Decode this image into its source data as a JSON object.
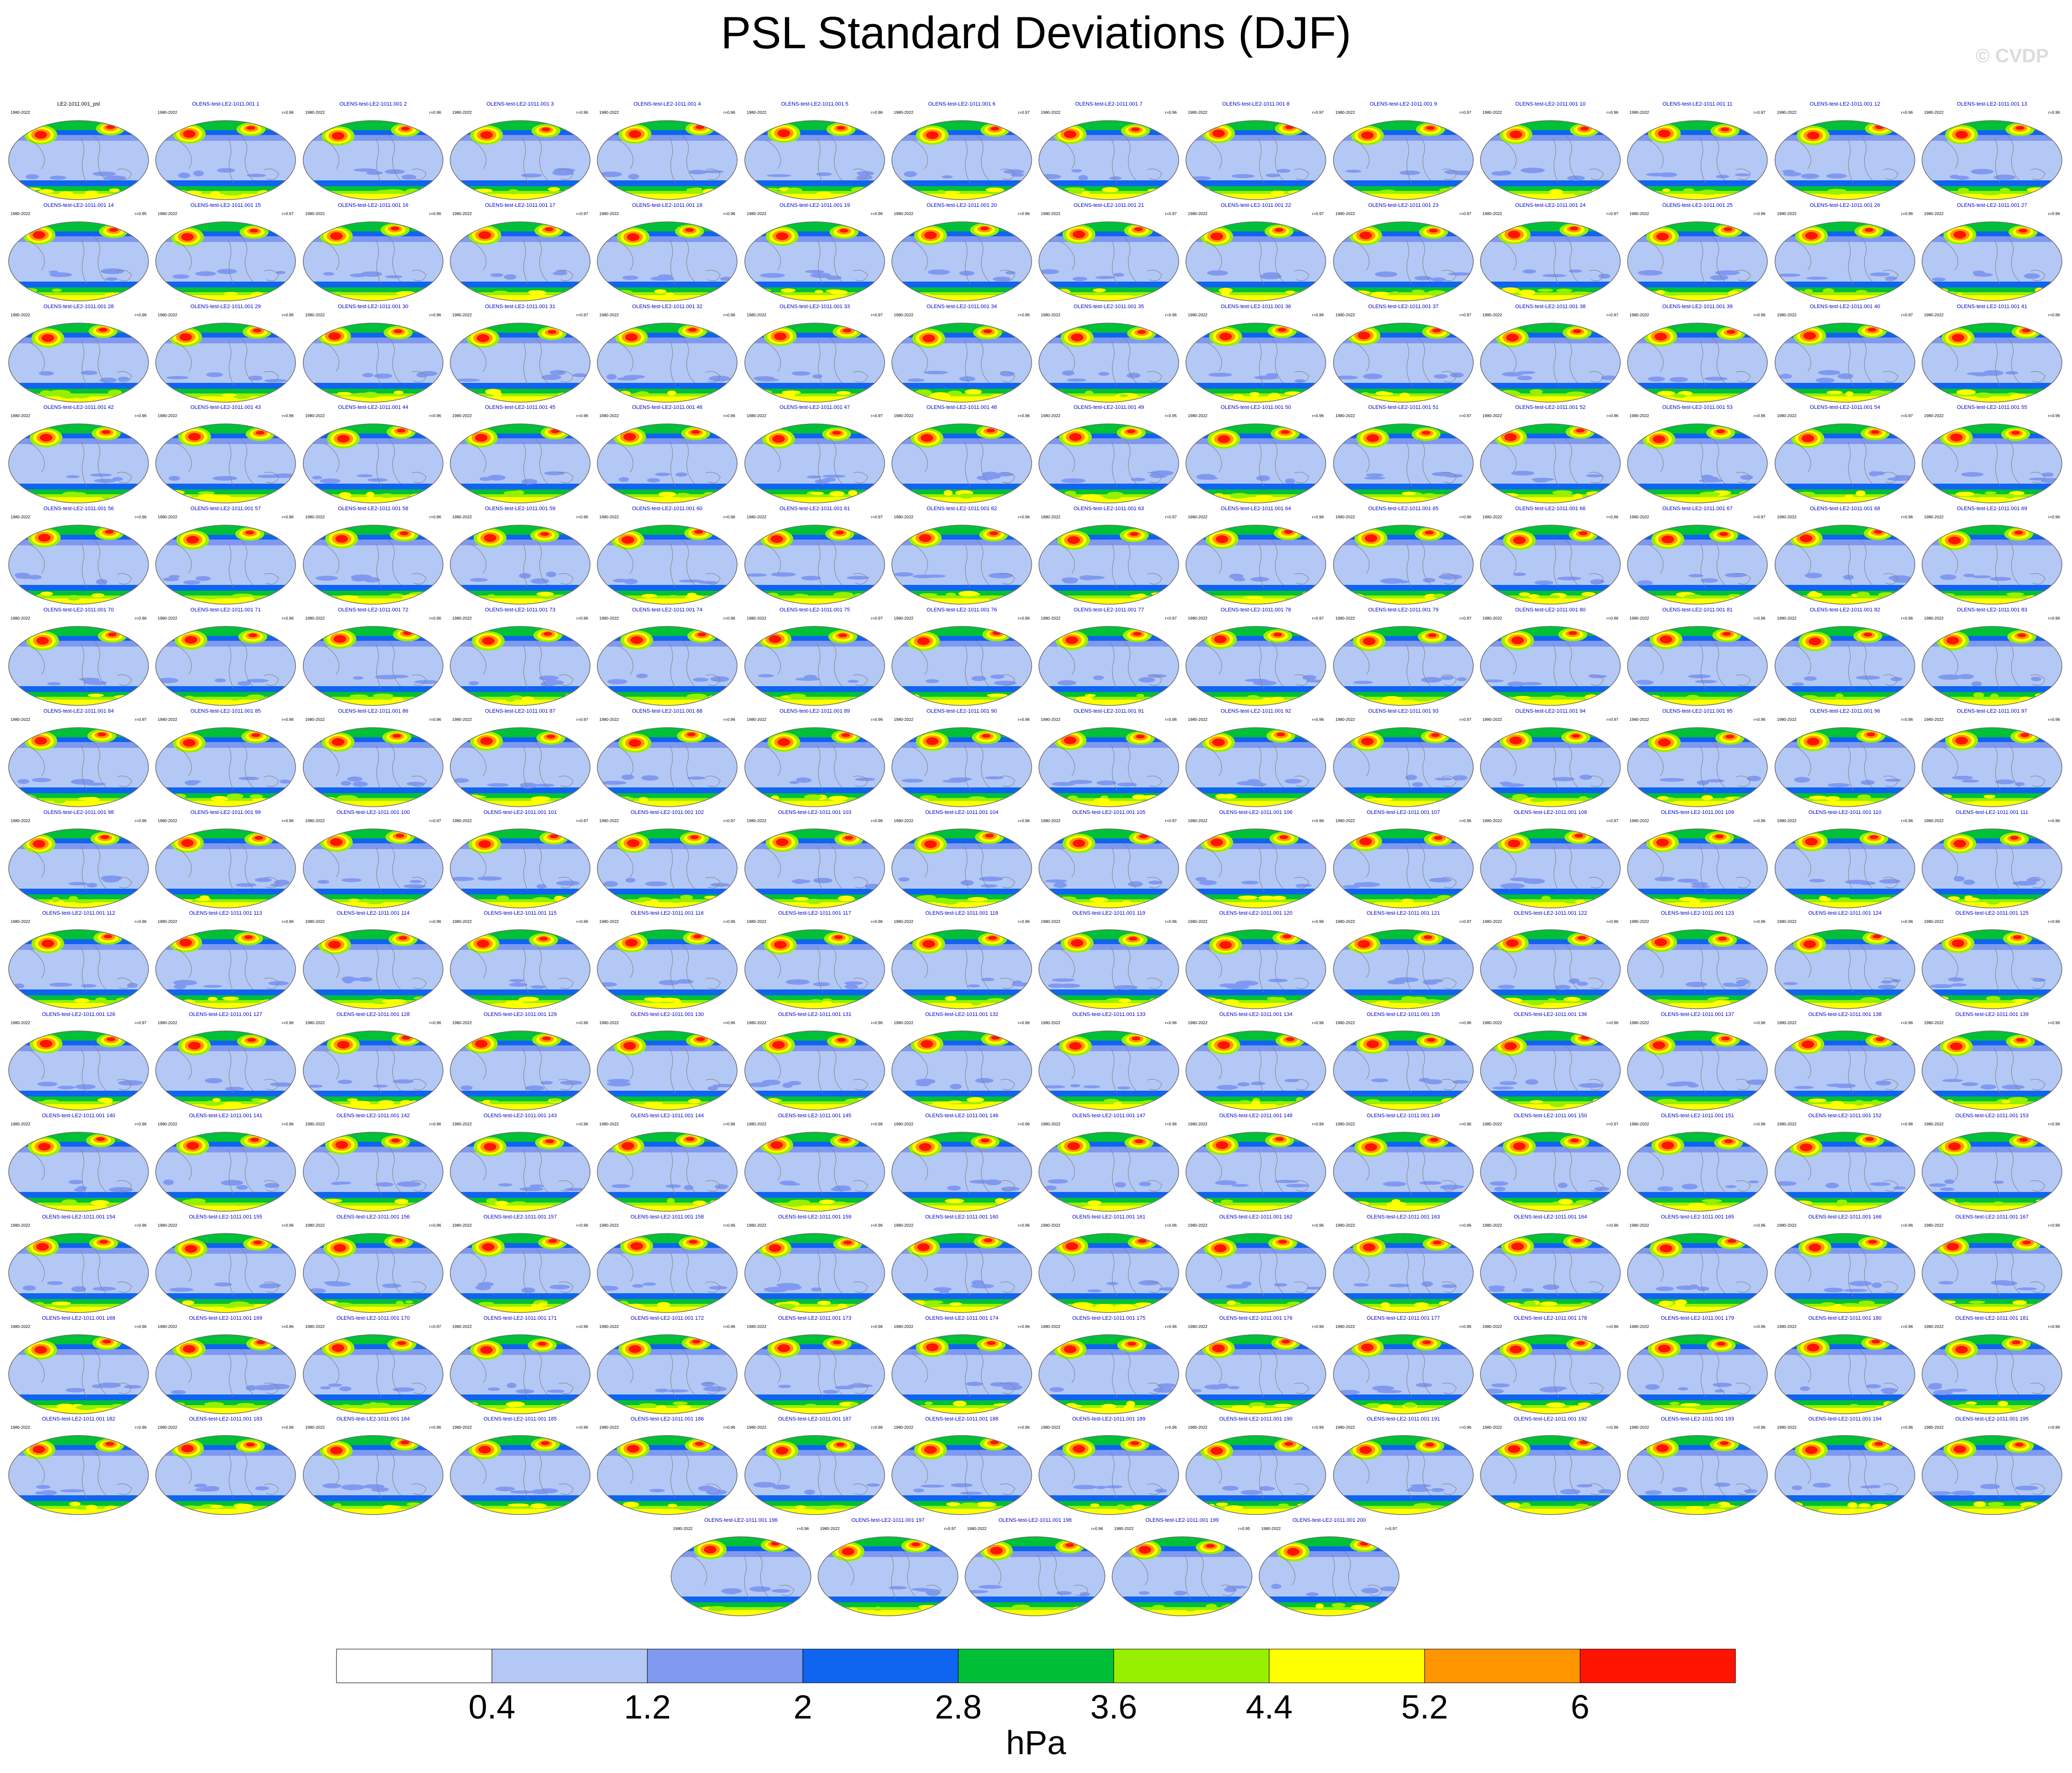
{
  "title": "PSL Standard Deviations (DJF)",
  "watermark": "© CVDP",
  "chart_data": {
    "type": "heatmap",
    "variable": "psl",
    "season": "DJF",
    "period": "1980-2022",
    "reference_panel": {
      "label": "LE2-1011.001_psl",
      "period": "1980-2022"
    },
    "panels": [
      {
        "label": "OLENS-test-LE2-1011.001 1",
        "r": "r=0.96"
      },
      {
        "label": "OLENS-test-LE2-1011.001 2",
        "r": "r=0.96"
      },
      {
        "label": "OLENS-test-LE2-1011.001 3",
        "r": "r=0.96"
      },
      {
        "label": "OLENS-test-LE2-1011.001 4",
        "r": "r=0.96"
      },
      {
        "label": "OLENS-test-LE2-1011.001 5",
        "r": "r=0.96"
      },
      {
        "label": "OLENS-test-LE2-1011.001 6",
        "r": "r=0.97"
      },
      {
        "label": "OLENS-test-LE2-1011.001 7",
        "r": "r=0.96"
      },
      {
        "label": "OLENS-test-LE2-1011.001 8",
        "r": "r=0.97"
      },
      {
        "label": "OLENS-test-LE2-1011.001 9",
        "r": "r=0.97"
      },
      {
        "label": "OLENS-test-LE2-1011.001 10",
        "r": "r=0.96"
      },
      {
        "label": "OLENS-test-LE2-1011.001 11",
        "r": "r=0.97"
      },
      {
        "label": "OLENS-test-LE2-1011.001 12",
        "r": "r=0.96"
      },
      {
        "label": "OLENS-test-LE2-1011.001 13",
        "r": "r=0.96"
      },
      {
        "label": "OLENS-test-LE2-1011.001 14",
        "r": "r=0.95"
      },
      {
        "label": "OLENS-test-LE2-1011.001 15",
        "r": "r=0.97"
      },
      {
        "label": "OLENS-test-LE2-1011.001 16",
        "r": "r=0.96"
      },
      {
        "label": "OLENS-test-LE2-1011.001 17",
        "r": "r=0.97"
      },
      {
        "label": "OLENS-test-LE2-1011.001 18",
        "r": "r=0.96"
      },
      {
        "label": "OLENS-test-LE2-1011.001 19",
        "r": "r=0.96"
      },
      {
        "label": "OLENS-test-LE2-1011.001 20",
        "r": "r=0.96"
      },
      {
        "label": "OLENS-test-LE2-1011.001 21",
        "r": "r=0.97"
      },
      {
        "label": "OLENS-test-LE2-1011.001 22",
        "r": "r=0.97"
      },
      {
        "label": "OLENS-test-LE2-1011.001 23",
        "r": "r=0.97"
      },
      {
        "label": "OLENS-test-LE2-1011.001 24",
        "r": "r=0.97"
      },
      {
        "label": "OLENS-test-LE2-1011.001 25",
        "r": "r=0.96"
      },
      {
        "label": "OLENS-test-LE2-1011.001 26",
        "r": "r=0.96"
      },
      {
        "label": "OLENS-test-LE2-1011.001 27",
        "r": "r=0.96"
      },
      {
        "label": "OLENS-test-LE2-1011.001 28",
        "r": "r=0.96"
      },
      {
        "label": "OLENS-test-LE2-1011.001 29",
        "r": "r=0.96"
      },
      {
        "label": "OLENS-test-LE2-1011.001 30",
        "r": "r=0.96"
      },
      {
        "label": "OLENS-test-LE2-1011.001 31",
        "r": "r=0.97"
      },
      {
        "label": "OLENS-test-LE2-1011.001 32",
        "r": "r=0.96"
      },
      {
        "label": "OLENS-test-LE2-1011.001 33",
        "r": "r=0.97"
      },
      {
        "label": "OLENS-test-LE2-1011.001 34",
        "r": "r=0.96"
      },
      {
        "label": "OLENS-test-LE2-1011.001 35",
        "r": "r=0.96"
      },
      {
        "label": "OLENS-test-LE2-1011.001 36",
        "r": "r=0.96"
      },
      {
        "label": "OLENS-test-LE2-1011.001 37",
        "r": "r=0.97"
      },
      {
        "label": "OLENS-test-LE2-1011.001 38",
        "r": "r=0.97"
      },
      {
        "label": "OLENS-test-LE2-1011.001 39",
        "r": "r=0.96"
      },
      {
        "label": "OLENS-test-LE2-1011.001 40",
        "r": "r=0.97"
      },
      {
        "label": "OLENS-test-LE2-1011.001 41",
        "r": "r=0.96"
      },
      {
        "label": "OLENS-test-LE2-1011.001 42",
        "r": "r=0.96"
      },
      {
        "label": "OLENS-test-LE2-1011.001 43",
        "r": "r=0.96"
      },
      {
        "label": "OLENS-test-LE2-1011.001 44",
        "r": "r=0.96"
      },
      {
        "label": "OLENS-test-LE2-1011.001 45",
        "r": "r=0.96"
      },
      {
        "label": "OLENS-test-LE2-1011.001 46",
        "r": "r=0.96"
      },
      {
        "label": "OLENS-test-LE2-1011.001 47",
        "r": "r=0.97"
      },
      {
        "label": "OLENS-test-LE2-1011.001 48",
        "r": "r=0.96"
      },
      {
        "label": "OLENS-test-LE2-1011.001 49",
        "r": "r=0.95"
      },
      {
        "label": "OLENS-test-LE2-1011.001 50",
        "r": "r=0.96"
      },
      {
        "label": "OLENS-test-LE2-1011.001 51",
        "r": "r=0.97"
      },
      {
        "label": "OLENS-test-LE2-1011.001 52",
        "r": "r=0.96"
      },
      {
        "label": "OLENS-test-LE2-1011.001 53",
        "r": "r=0.96"
      },
      {
        "label": "OLENS-test-LE2-1011.001 54",
        "r": "r=0.97"
      },
      {
        "label": "OLENS-test-LE2-1011.001 55",
        "r": "r=0.96"
      },
      {
        "label": "OLENS-test-LE2-1011.001 56",
        "r": "r=0.96"
      },
      {
        "label": "OLENS-test-LE2-1011.001 57",
        "r": "r=0.96"
      },
      {
        "label": "OLENS-test-LE2-1011.001 58",
        "r": "r=0.96"
      },
      {
        "label": "OLENS-test-LE2-1011.001 59",
        "r": "r=0.96"
      },
      {
        "label": "OLENS-test-LE2-1011.001 60",
        "r": "r=0.96"
      },
      {
        "label": "OLENS-test-LE2-1011.001 61",
        "r": "r=0.97"
      },
      {
        "label": "OLENS-test-LE2-1011.001 62",
        "r": "r=0.96"
      },
      {
        "label": "OLENS-test-LE2-1011.001 63",
        "r": "r=0.97"
      },
      {
        "label": "OLENS-test-LE2-1011.001 64",
        "r": "r=0.96"
      },
      {
        "label": "OLENS-test-LE2-1011.001 65",
        "r": "r=0.96"
      },
      {
        "label": "OLENS-test-LE2-1011.001 66",
        "r": "r=0.96"
      },
      {
        "label": "OLENS-test-LE2-1011.001 67",
        "r": "r=0.97"
      },
      {
        "label": "OLENS-test-LE2-1011.001 68",
        "r": "r=0.96"
      },
      {
        "label": "OLENS-test-LE2-1011.001 69",
        "r": "r=0.96"
      },
      {
        "label": "OLENS-test-LE2-1011.001 70",
        "r": "r=0.96"
      },
      {
        "label": "OLENS-test-LE2-1011.001 71",
        "r": "r=0.96"
      },
      {
        "label": "OLENS-test-LE2-1011.001 72",
        "r": "r=0.96"
      },
      {
        "label": "OLENS-test-LE2-1011.001 73",
        "r": "r=0.96"
      },
      {
        "label": "OLENS-test-LE2-1011.001 74",
        "r": "r=0.96"
      },
      {
        "label": "OLENS-test-LE2-1011.001 75",
        "r": "r=0.97"
      },
      {
        "label": "OLENS-test-LE2-1011.001 76",
        "r": "r=0.96"
      },
      {
        "label": "OLENS-test-LE2-1011.001 77",
        "r": "r=0.97"
      },
      {
        "label": "OLENS-test-LE2-1011.001 78",
        "r": "r=0.97"
      },
      {
        "label": "OLENS-test-LE2-1011.001 79",
        "r": "r=0.97"
      },
      {
        "label": "OLENS-test-LE2-1011.001 80",
        "r": "r=0.96"
      },
      {
        "label": "OLENS-test-LE2-1011.001 81",
        "r": "r=0.96"
      },
      {
        "label": "OLENS-test-LE2-1011.001 82",
        "r": "r=0.96"
      },
      {
        "label": "OLENS-test-LE2-1011.001 83",
        "r": "r=0.96"
      },
      {
        "label": "OLENS-test-LE2-1011.001 84",
        "r": "r=0.97"
      },
      {
        "label": "OLENS-test-LE2-1011.001 85",
        "r": "r=0.96"
      },
      {
        "label": "OLENS-test-LE2-1011.001 86",
        "r": "r=0.96"
      },
      {
        "label": "OLENS-test-LE2-1011.001 87",
        "r": "r=0.97"
      },
      {
        "label": "OLENS-test-LE2-1011.001 88",
        "r": "r=0.96"
      },
      {
        "label": "OLENS-test-LE2-1011.001 89",
        "r": "r=0.96"
      },
      {
        "label": "OLENS-test-LE2-1011.001 90",
        "r": "r=0.96"
      },
      {
        "label": "OLENS-test-LE2-1011.001 91",
        "r": "r=0.96"
      },
      {
        "label": "OLENS-test-LE2-1011.001 92",
        "r": "r=0.96"
      },
      {
        "label": "OLENS-test-LE2-1011.001 93",
        "r": "r=0.97"
      },
      {
        "label": "OLENS-test-LE2-1011.001 94",
        "r": "r=0.97"
      },
      {
        "label": "OLENS-test-LE2-1011.001 95",
        "r": "r=0.96"
      },
      {
        "label": "OLENS-test-LE2-1011.001 96",
        "r": "r=0.96"
      },
      {
        "label": "OLENS-test-LE2-1011.001 97",
        "r": "r=0.96"
      },
      {
        "label": "OLENS-test-LE2-1011.001 98",
        "r": "r=0.96"
      },
      {
        "label": "OLENS-test-LE2-1011.001 99",
        "r": "r=0.96"
      },
      {
        "label": "OLENS-test-LE2-1011.001 100",
        "r": "r=0.97"
      },
      {
        "label": "OLENS-test-LE2-1011.001 101",
        "r": "r=0.97"
      },
      {
        "label": "OLENS-test-LE2-1011.001 102",
        "r": "r=0.97"
      },
      {
        "label": "OLENS-test-LE2-1011.001 103",
        "r": "r=0.96"
      },
      {
        "label": "OLENS-test-LE2-1011.001 104",
        "r": "r=0.96"
      },
      {
        "label": "OLENS-test-LE2-1011.001 105",
        "r": "r=0.97"
      },
      {
        "label": "OLENS-test-LE2-1011.001 106",
        "r": "r=0.96"
      },
      {
        "label": "OLENS-test-LE2-1011.001 107",
        "r": "r=0.96"
      },
      {
        "label": "OLENS-test-LE2-1011.001 108",
        "r": "r=0.97"
      },
      {
        "label": "OLENS-test-LE2-1011.001 109",
        "r": "r=0.96"
      },
      {
        "label": "OLENS-test-LE2-1011.001 110",
        "r": "r=0.96"
      },
      {
        "label": "OLENS-test-LE2-1011.001 111",
        "r": "r=0.96"
      },
      {
        "label": "OLENS-test-LE2-1011.001 112",
        "r": "r=0.96"
      },
      {
        "label": "OLENS-test-LE2-1011.001 113",
        "r": "r=0.96"
      },
      {
        "label": "OLENS-test-LE2-1011.001 114",
        "r": "r=0.96"
      },
      {
        "label": "OLENS-test-LE2-1011.001 115",
        "r": "r=0.96"
      },
      {
        "label": "OLENS-test-LE2-1011.001 116",
        "r": "r=0.96"
      },
      {
        "label": "OLENS-test-LE2-1011.001 117",
        "r": "r=0.96"
      },
      {
        "label": "OLENS-test-LE2-1011.001 118",
        "r": "r=0.96"
      },
      {
        "label": "OLENS-test-LE2-1011.001 119",
        "r": "r=0.96"
      },
      {
        "label": "OLENS-test-LE2-1011.001 120",
        "r": "r=0.96"
      },
      {
        "label": "OLENS-test-LE2-1011.001 121",
        "r": "r=0.97"
      },
      {
        "label": "OLENS-test-LE2-1011.001 122",
        "r": "r=0.96"
      },
      {
        "label": "OLENS-test-LE2-1011.001 123",
        "r": "r=0.96"
      },
      {
        "label": "OLENS-test-LE2-1011.001 124",
        "r": "r=0.96"
      },
      {
        "label": "OLENS-test-LE2-1011.001 125",
        "r": "r=0.96"
      },
      {
        "label": "OLENS-test-LE2-1011.001 126",
        "r": "r=0.97"
      },
      {
        "label": "OLENS-test-LE2-1011.001 127",
        "r": "r=0.96"
      },
      {
        "label": "OLENS-test-LE2-1011.001 128",
        "r": "r=0.96"
      },
      {
        "label": "OLENS-test-LE2-1011.001 129",
        "r": "r=0.96"
      },
      {
        "label": "OLENS-test-LE2-1011.001 130",
        "r": "r=0.96"
      },
      {
        "label": "OLENS-test-LE2-1011.001 131",
        "r": "r=0.96"
      },
      {
        "label": "OLENS-test-LE2-1011.001 132",
        "r": "r=0.96"
      },
      {
        "label": "OLENS-test-LE2-1011.001 133",
        "r": "r=0.96"
      },
      {
        "label": "OLENS-test-LE2-1011.001 134",
        "r": "r=0.96"
      },
      {
        "label": "OLENS-test-LE2-1011.001 135",
        "r": "r=0.96"
      },
      {
        "label": "OLENS-test-LE2-1011.001 136",
        "r": "r=0.96"
      },
      {
        "label": "OLENS-test-LE2-1011.001 137",
        "r": "r=0.96"
      },
      {
        "label": "OLENS-test-LE2-1011.001 138",
        "r": "r=0.96"
      },
      {
        "label": "OLENS-test-LE2-1011.001 139",
        "r": "r=0.96"
      },
      {
        "label": "OLENS-test-LE2-1011.001 140",
        "r": "r=0.96"
      },
      {
        "label": "OLENS-test-LE2-1011.001 141",
        "r": "r=0.96"
      },
      {
        "label": "OLENS-test-LE2-1011.001 142",
        "r": "r=0.96"
      },
      {
        "label": "OLENS-test-LE2-1011.001 143",
        "r": "r=0.96"
      },
      {
        "label": "OLENS-test-LE2-1011.001 144",
        "r": "r=0.96"
      },
      {
        "label": "OLENS-test-LE2-1011.001 145",
        "r": "r=0.96"
      },
      {
        "label": "OLENS-test-LE2-1011.001 146",
        "r": "r=0.96"
      },
      {
        "label": "OLENS-test-LE2-1011.001 147",
        "r": "r=0.96"
      },
      {
        "label": "OLENS-test-LE2-1011.001 148",
        "r": "r=0.96"
      },
      {
        "label": "OLENS-test-LE2-1011.001 149",
        "r": "r=0.96"
      },
      {
        "label": "OLENS-test-LE2-1011.001 150",
        "r": "r=0.97"
      },
      {
        "label": "OLENS-test-LE2-1011.001 151",
        "r": "r=0.96"
      },
      {
        "label": "OLENS-test-LE2-1011.001 152",
        "r": "r=0.96"
      },
      {
        "label": "OLENS-test-LE2-1011.001 153",
        "r": "r=0.96"
      },
      {
        "label": "OLENS-test-LE2-1011.001 154",
        "r": "r=0.96"
      },
      {
        "label": "OLENS-test-LE2-1011.001 155",
        "r": "r=0.96"
      },
      {
        "label": "OLENS-test-LE2-1011.001 156",
        "r": "r=0.96"
      },
      {
        "label": "OLENS-test-LE2-1011.001 157",
        "r": "r=0.96"
      },
      {
        "label": "OLENS-test-LE2-1011.001 158",
        "r": "r=0.96"
      },
      {
        "label": "OLENS-test-LE2-1011.001 159",
        "r": "r=0.96"
      },
      {
        "label": "OLENS-test-LE2-1011.001 160",
        "r": "r=0.96"
      },
      {
        "label": "OLENS-test-LE2-1011.001 161",
        "r": "r=0.96"
      },
      {
        "label": "OLENS-test-LE2-1011.001 162",
        "r": "r=0.96"
      },
      {
        "label": "OLENS-test-LE2-1011.001 163",
        "r": "r=0.96"
      },
      {
        "label": "OLENS-test-LE2-1011.001 164",
        "r": "r=0.96"
      },
      {
        "label": "OLENS-test-LE2-1011.001 165",
        "r": "r=0.96"
      },
      {
        "label": "OLENS-test-LE2-1011.001 166",
        "r": "r=0.96"
      },
      {
        "label": "OLENS-test-LE2-1011.001 167",
        "r": "r=0.96"
      },
      {
        "label": "OLENS-test-LE2-1011.001 168",
        "r": "r=0.96"
      },
      {
        "label": "OLENS-test-LE2-1011.001 169",
        "r": "r=0.96"
      },
      {
        "label": "OLENS-test-LE2-1011.001 170",
        "r": "r=0.97"
      },
      {
        "label": "OLENS-test-LE2-1011.001 171",
        "r": "r=0.96"
      },
      {
        "label": "OLENS-test-LE2-1011.001 172",
        "r": "r=0.96"
      },
      {
        "label": "OLENS-test-LE2-1011.001 173",
        "r": "r=0.96"
      },
      {
        "label": "OLENS-test-LE2-1011.001 174",
        "r": "r=0.96"
      },
      {
        "label": "OLENS-test-LE2-1011.001 175",
        "r": "r=0.96"
      },
      {
        "label": "OLENS-test-LE2-1011.001 176",
        "r": "r=0.96"
      },
      {
        "label": "OLENS-test-LE2-1011.001 177",
        "r": "r=0.96"
      },
      {
        "label": "OLENS-test-LE2-1011.001 178",
        "r": "r=0.96"
      },
      {
        "label": "OLENS-test-LE2-1011.001 179",
        "r": "r=0.96"
      },
      {
        "label": "OLENS-test-LE2-1011.001 180",
        "r": "r=0.96"
      },
      {
        "label": "OLENS-test-LE2-1011.001 181",
        "r": "r=0.96"
      },
      {
        "label": "OLENS-test-LE2-1011.001 182",
        "r": "r=0.96"
      },
      {
        "label": "OLENS-test-LE2-1011.001 183",
        "r": "r=0.96"
      },
      {
        "label": "OLENS-test-LE2-1011.001 184",
        "r": "r=0.96"
      },
      {
        "label": "OLENS-test-LE2-1011.001 185",
        "r": "r=0.96"
      },
      {
        "label": "OLENS-test-LE2-1011.001 186",
        "r": "r=0.96"
      },
      {
        "label": "OLENS-test-LE2-1011.001 187",
        "r": "r=0.96"
      },
      {
        "label": "OLENS-test-LE2-1011.001 188",
        "r": "r=0.96"
      },
      {
        "label": "OLENS-test-LE2-1011.001 189",
        "r": "r=0.96"
      },
      {
        "label": "OLENS-test-LE2-1011.001 190",
        "r": "r=0.96"
      },
      {
        "label": "OLENS-test-LE2-1011.001 191",
        "r": "r=0.96"
      },
      {
        "label": "OLENS-test-LE2-1011.001 192",
        "r": "r=0.96"
      },
      {
        "label": "OLENS-test-LE2-1011.001 193",
        "r": "r=0.96"
      },
      {
        "label": "OLENS-test-LE2-1011.001 194",
        "r": "r=0.96"
      },
      {
        "label": "OLENS-test-LE2-1011.001 195",
        "r": "r=0.96"
      },
      {
        "label": "OLENS-test-LE2-1011.001 196",
        "r": "r=0.96"
      },
      {
        "label": "OLENS-test-LE2-1011.001 197",
        "r": "r=0.97"
      },
      {
        "label": "OLENS-test-LE2-1011.001 198",
        "r": "r=0.96"
      },
      {
        "label": "OLENS-test-LE2-1011.001 199",
        "r": "r=0.95"
      },
      {
        "label": "OLENS-test-LE2-1011.001 200",
        "r": "r=0.97"
      }
    ],
    "colorbar": {
      "colors": [
        "#ffffff",
        "#b4c8f5",
        "#8099f0",
        "#0f64f0",
        "#00c037",
        "#96f000",
        "#ffff00",
        "#ff9600",
        "#ff1400"
      ],
      "tick_labels": [
        "0.4",
        "1.2",
        "2",
        "2.8",
        "3.6",
        "4.4",
        "5.2",
        "6"
      ],
      "units": "hPa"
    },
    "map_palette": {
      "ocean_background": "#b4c8f5",
      "low": "#8099f0",
      "mid_low": "#0f64f0",
      "mid": "#00c037",
      "mid_high": "#96f000",
      "high": "#ffff00",
      "higher": "#ff9600",
      "max": "#ff1400",
      "coast": "#808080",
      "title_text": "#0000c8"
    }
  }
}
